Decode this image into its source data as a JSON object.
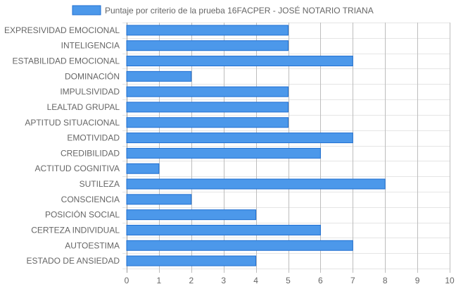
{
  "chart_data": {
    "type": "bar",
    "orientation": "horizontal",
    "categories": [
      "EXPRESIVIDAD EMOCIONAL",
      "INTELIGENCIA",
      "ESTABILIDAD EMOCIONAL",
      "DOMINACIÓN",
      "IMPULSIVIDAD",
      "LEALTAD GRUPAL",
      "APTITUD SITUACIONAL",
      "EMOTIVIDAD",
      "CREDIBILIDAD",
      "ACTITUD COGNITIVA",
      "SUTILEZA",
      "CONSCIENCIA",
      "POSICIÓN SOCIAL",
      "CERTEZA INDIVIDUAL",
      "AUTOESTIMA",
      "ESTADO DE ANSIEDAD"
    ],
    "series": [
      {
        "name": "Puntaje por criterio de la prueba 16FACPER - JOSÉ NOTARIO TRIANA",
        "values": [
          5,
          5,
          7,
          2,
          5,
          5,
          5,
          7,
          6,
          1,
          8,
          2,
          4,
          6,
          7,
          4
        ],
        "color": "#4c98ea",
        "border_color": "#1f6fd1"
      }
    ],
    "xlim": [
      0,
      10
    ],
    "xticks": [
      "0",
      "1",
      "2",
      "3",
      "4",
      "5",
      "6",
      "7",
      "8",
      "9",
      "10"
    ],
    "grid": true,
    "legend_position": "top"
  }
}
